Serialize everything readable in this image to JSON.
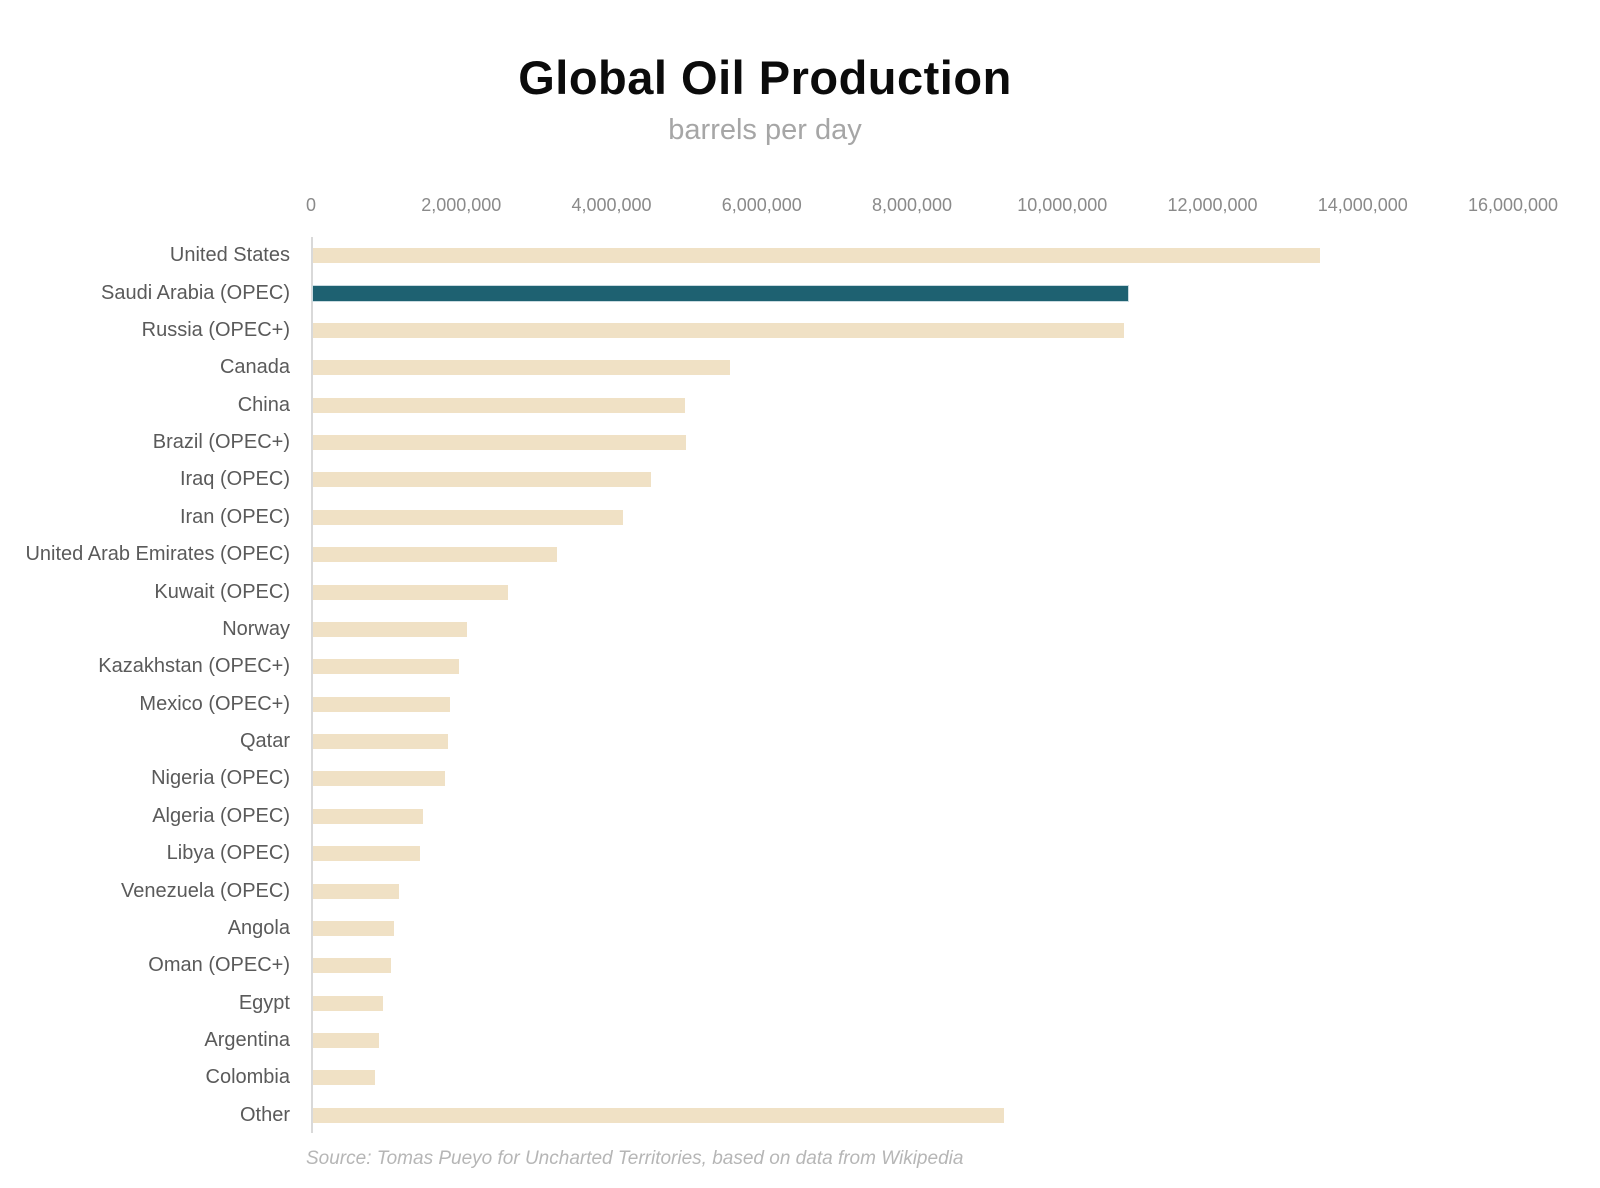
{
  "header": {
    "title": "Global Oil Production",
    "subtitle": "barrels per day"
  },
  "footer": {
    "source": "Source: Tomas Pueyo for Uncharted Territories, based on data from Wikipedia"
  },
  "colors": {
    "bar_default": "#f0e1c5",
    "bar_highlight": "#1e6171",
    "highlight_outline": "#c9dae0",
    "axis_line": "#d9d9d9",
    "label_text": "#5a5a5a",
    "tick_text": "#8a8a8a",
    "subtitle_text": "#a6a6a6",
    "source_text": "#b6b6b6"
  },
  "chart_data": {
    "type": "bar",
    "orientation": "horizontal",
    "title": "Global Oil Production",
    "subtitle": "barrels per day",
    "xlabel": "barrels per day",
    "ylabel": "",
    "grid": false,
    "legend": "none",
    "xlim": [
      0,
      16000000
    ],
    "x_tick_values": [
      0,
      2000000,
      4000000,
      6000000,
      8000000,
      10000000,
      12000000,
      14000000,
      16000000
    ],
    "x_tick_labels": [
      "0",
      "2,000,000",
      "4,000,000",
      "6,000,000",
      "8,000,000",
      "10,000,000",
      "12,000,000",
      "14,000,000",
      "16,000,000"
    ],
    "highlight_index": 1,
    "highlighted_category": "Saudi Arabia (OPEC)",
    "categories": [
      "United States",
      "Saudi Arabia (OPEC)",
      "Russia (OPEC+)",
      "Canada",
      "China",
      "Brazil (OPEC+)",
      "Iraq (OPEC)",
      "Iran (OPEC)",
      "United Arab Emirates (OPEC)",
      "Kuwait (OPEC)",
      "Norway",
      "Kazakhstan (OPEC+)",
      "Mexico (OPEC+)",
      "Qatar",
      "Nigeria (OPEC)",
      "Algeria (OPEC)",
      "Libya (OPEC)",
      "Venezuela (OPEC)",
      "Angola",
      "Oman (OPEC+)",
      "Egypt",
      "Argentina",
      "Colombia",
      "Other"
    ],
    "values": [
      13400000,
      10850000,
      10800000,
      5550000,
      4950000,
      4970000,
      4500000,
      4130000,
      3250000,
      2600000,
      2050000,
      1940000,
      1820000,
      1800000,
      1760000,
      1470000,
      1430000,
      1150000,
      1080000,
      1040000,
      930000,
      880000,
      820000,
      9200000
    ]
  }
}
